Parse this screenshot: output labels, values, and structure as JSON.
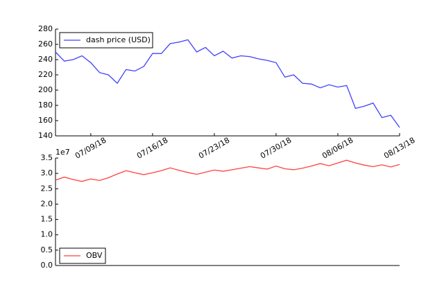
{
  "chart_data": [
    {
      "type": "line",
      "x": [
        "07/05/18",
        "07/06/18",
        "07/07/18",
        "07/08/18",
        "07/09/18",
        "07/10/18",
        "07/11/18",
        "07/12/18",
        "07/13/18",
        "07/14/18",
        "07/15/18",
        "07/16/18",
        "07/17/18",
        "07/18/18",
        "07/19/18",
        "07/20/18",
        "07/21/18",
        "07/22/18",
        "07/23/18",
        "07/24/18",
        "07/25/18",
        "07/26/18",
        "07/27/18",
        "07/28/18",
        "07/29/18",
        "07/30/18",
        "07/31/18",
        "08/01/18",
        "08/02/18",
        "08/03/18",
        "08/04/18",
        "08/05/18",
        "08/06/18",
        "08/07/18",
        "08/08/18",
        "08/09/18",
        "08/10/18",
        "08/11/18",
        "08/12/18",
        "08/13/18"
      ],
      "series": [
        {
          "name": "dash price (USD)",
          "color": "#4040ff",
          "values": [
            250,
            238,
            240,
            245,
            236,
            223,
            220,
            209,
            227,
            225,
            231,
            248,
            248,
            261,
            263,
            266,
            250,
            256,
            245,
            251,
            242,
            245,
            244,
            241,
            239,
            236,
            217,
            220,
            209,
            208,
            203,
            207,
            204,
            206,
            176,
            179,
            183,
            164,
            167,
            151
          ]
        }
      ],
      "ylim": [
        140,
        280
      ],
      "yticks": [
        140,
        160,
        180,
        200,
        220,
        240,
        260,
        280
      ],
      "xticks": [
        "07/09/18",
        "07/16/18",
        "07/23/18",
        "07/30/18",
        "08/06/18",
        "08/13/18"
      ],
      "legend": "upper left"
    },
    {
      "type": "line",
      "x": [
        "07/05/18",
        "07/06/18",
        "07/07/18",
        "07/08/18",
        "07/09/18",
        "07/10/18",
        "07/11/18",
        "07/12/18",
        "07/13/18",
        "07/14/18",
        "07/15/18",
        "07/16/18",
        "07/17/18",
        "07/18/18",
        "07/19/18",
        "07/20/18",
        "07/21/18",
        "07/22/18",
        "07/23/18",
        "07/24/18",
        "07/25/18",
        "07/26/18",
        "07/27/18",
        "07/28/18",
        "07/29/18",
        "07/30/18",
        "07/31/18",
        "08/01/18",
        "08/02/18",
        "08/03/18",
        "08/04/18",
        "08/05/18",
        "08/06/18",
        "08/07/18",
        "08/08/18",
        "08/09/18",
        "08/10/18",
        "08/11/18",
        "08/12/18",
        "08/13/18"
      ],
      "series": [
        {
          "name": "OBV",
          "color": "#ff4040",
          "values": [
            2.78,
            2.88,
            2.8,
            2.74,
            2.82,
            2.77,
            2.86,
            2.98,
            3.09,
            3.02,
            2.96,
            3.02,
            3.09,
            3.18,
            3.1,
            3.03,
            2.97,
            3.04,
            3.11,
            3.07,
            3.12,
            3.17,
            3.22,
            3.18,
            3.14,
            3.24,
            3.15,
            3.12,
            3.17,
            3.24,
            3.32,
            3.25,
            3.34,
            3.43,
            3.34,
            3.27,
            3.22,
            3.28,
            3.21,
            3.29
          ]
        }
      ],
      "ylim": [
        0,
        3.5
      ],
      "yticks": [
        {
          "value": 0,
          "label": "0.0"
        },
        0.5,
        {
          "value": 1,
          "label": "1.0"
        },
        1.5,
        {
          "value": 2,
          "label": "2.0"
        },
        2.5,
        {
          "value": 3,
          "label": "3.0"
        },
        3.5
      ],
      "offset_label": "1e7",
      "legend": "lower left"
    }
  ]
}
